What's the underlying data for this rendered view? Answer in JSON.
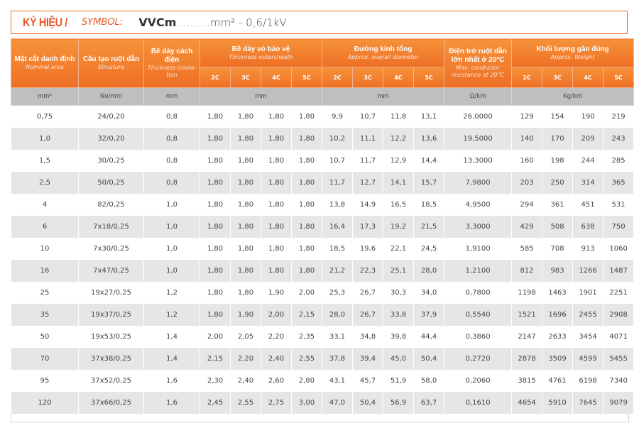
{
  "title": {
    "label_vn": "KÝ HIỆU /",
    "label_en": "SYMBOL:",
    "code": "VVCm",
    "rest": "..........mm² - 0,6/1kV"
  },
  "colors": {
    "accent": "#ee6c2a",
    "header_bg": "#f28432",
    "units_bg": "#bfbfbf",
    "stripe": "#e6e6e8"
  },
  "table": {
    "headers": {
      "nominal_area": {
        "vn": "Mặt cắt  danh định",
        "en": "Nominal area"
      },
      "structure": {
        "vn": "Cấu tạo ruột dẫn",
        "en": "Structure"
      },
      "insulation": {
        "vn": "Bề dày cách điện",
        "en": "Thickness insula-tion"
      },
      "sheath": {
        "vn": "Bề dày vỏ bảo vệ",
        "en": "Thickness outersheath"
      },
      "diameter": {
        "vn": "Đường kính tổng",
        "en": "Approx. overall diameter"
      },
      "resistance": {
        "vn": "Điện trở ruột dẫn lớn nhất ở 20°C",
        "en": "Max. conductor resistance at 20°C"
      },
      "weight": {
        "vn": "Khối lượng gần đúng",
        "en": "Approx. Weight"
      },
      "cores": [
        "2C",
        "3C",
        "4C",
        "5C"
      ]
    },
    "units": [
      "mm²",
      "No/mm",
      "mm",
      "mm",
      "mm",
      "Ω/km",
      "Kg/km"
    ],
    "rows": [
      [
        "0,75",
        "24/0,20",
        "0,8",
        "1,80",
        "1,80",
        "1,80",
        "1,80",
        "9,9",
        "10,7",
        "11,8",
        "13,1",
        "26,0000",
        "129",
        "154",
        "190",
        "219"
      ],
      [
        "1,0",
        "32/0,20",
        "0,8",
        "1,80",
        "1,80",
        "1,80",
        "1,80",
        "10,2",
        "11,1",
        "12,2",
        "13,6",
        "19,5000",
        "140",
        "170",
        "209",
        "243"
      ],
      [
        "1,5",
        "30/0,25",
        "0,8",
        "1,80",
        "1,80",
        "1,80",
        "1,80",
        "10,7",
        "11,7",
        "12,9",
        "14,4",
        "13,3000",
        "160",
        "198",
        "244",
        "285"
      ],
      [
        "2,5",
        "50/0,25",
        "0,8",
        "1,80",
        "1,80",
        "1,80",
        "1,80",
        "11,7",
        "12,7",
        "14,1",
        "15,7",
        "7,9800",
        "203",
        "250",
        "314",
        "365"
      ],
      [
        "4",
        "82/0,25",
        "1,0",
        "1,80",
        "1,80",
        "1,80",
        "1,80",
        "13,8",
        "14,9",
        "16,5",
        "18,5",
        "4,9500",
        "294",
        "361",
        "451",
        "531"
      ],
      [
        "6",
        "7x18/0,25",
        "1,0",
        "1,80",
        "1,80",
        "1,80",
        "1,80",
        "16,4",
        "17,3",
        "19,2",
        "21,5",
        "3,3000",
        "429",
        "508",
        "638",
        "750"
      ],
      [
        "10",
        "7x30/0,25",
        "1,0",
        "1,80",
        "1,80",
        "1,80",
        "1,80",
        "18,5",
        "19,6",
        "22,1",
        "24,5",
        "1,9100",
        "585",
        "708",
        "913",
        "1060"
      ],
      [
        "16",
        "7x47/0,25",
        "1,0",
        "1,80",
        "1,80",
        "1,80",
        "1,80",
        "21,2",
        "22,3",
        "25,1",
        "28,0",
        "1,2100",
        "812",
        "983",
        "1266",
        "1487"
      ],
      [
        "25",
        "19x27/0,25",
        "1,2",
        "1,80",
        "1,80",
        "1,90",
        "2,00",
        "25,3",
        "26,7",
        "30,3",
        "34,0",
        "0,7800",
        "1198",
        "1463",
        "1901",
        "2251"
      ],
      [
        "35",
        "19x37/0,25",
        "1,2",
        "1,80",
        "1,90",
        "2,00",
        "2,15",
        "28,0",
        "26,7",
        "33,8",
        "37,9",
        "0,5540",
        "1521",
        "1696",
        "2455",
        "2908"
      ],
      [
        "50",
        "19x53/0,25",
        "1,4",
        "2,00",
        "2,05",
        "2,20",
        "2,35",
        "33,1",
        "34,8",
        "39,8",
        "44,4",
        "0,3860",
        "2147",
        "2633",
        "3454",
        "4071"
      ],
      [
        "70",
        "37x38/0,25",
        "1,4",
        "2,15",
        "2,20",
        "2,40",
        "2,55",
        "37,8",
        "39,4",
        "45,0",
        "50,4",
        "0,2720",
        "2878",
        "3509",
        "4599",
        "5455"
      ],
      [
        "95",
        "37x52/0,25",
        "1,6",
        "2,30",
        "2,40",
        "2,60",
        "2,80",
        "43,1",
        "45,7",
        "51,9",
        "58,0",
        "0,2060",
        "3815",
        "4761",
        "6198",
        "7340"
      ],
      [
        "120",
        "37x66/0,25",
        "1,6",
        "2,45",
        "2,55",
        "2,75",
        "3,00",
        "47,0",
        "50,4",
        "56,9",
        "63,7",
        "0,1610",
        "4654",
        "5910",
        "7645",
        "9079"
      ]
    ]
  }
}
